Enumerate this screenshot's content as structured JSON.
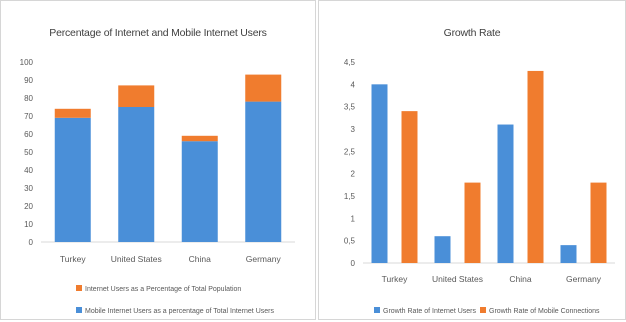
{
  "chart_data": [
    {
      "type": "bar",
      "stacked": true,
      "title": "Percentage of Internet and Mobile Internet Users",
      "categories": [
        "Turkey",
        "United States",
        "China",
        "Germany"
      ],
      "ylim": [
        0,
        100
      ],
      "yticks": [
        "0",
        "10",
        "20",
        "30",
        "40",
        "50",
        "60",
        "70",
        "80",
        "90",
        "100"
      ],
      "grid": false,
      "legend_position": "bottom",
      "series": [
        {
          "name": "Mobile Internet Users as a percentage of Total Internet Users",
          "values": [
            69,
            75,
            56,
            78
          ],
          "color": "#4a8fd8"
        },
        {
          "name": "Internet Users as a Percentage of Total Population",
          "values": [
            5,
            12,
            3,
            15
          ],
          "color": "#f07c2e"
        }
      ]
    },
    {
      "type": "bar",
      "title": "Growth Rate",
      "categories": [
        "Turkey",
        "United States",
        "China",
        "Germany"
      ],
      "ylim": [
        0,
        4.5
      ],
      "yticks": [
        "0",
        "0,5",
        "1",
        "1,5",
        "2",
        "2,5",
        "3",
        "3,5",
        "4",
        "4,5"
      ],
      "grid": false,
      "legend_position": "bottom",
      "series": [
        {
          "name": "Growth Rate of Internet Users",
          "values": [
            4.0,
            0.6,
            3.1,
            0.4
          ],
          "color": "#4a8fd8"
        },
        {
          "name": "Growth Rate of Mobile Connections",
          "values": [
            3.4,
            1.8,
            4.3,
            1.8
          ],
          "color": "#f07c2e"
        }
      ]
    }
  ]
}
